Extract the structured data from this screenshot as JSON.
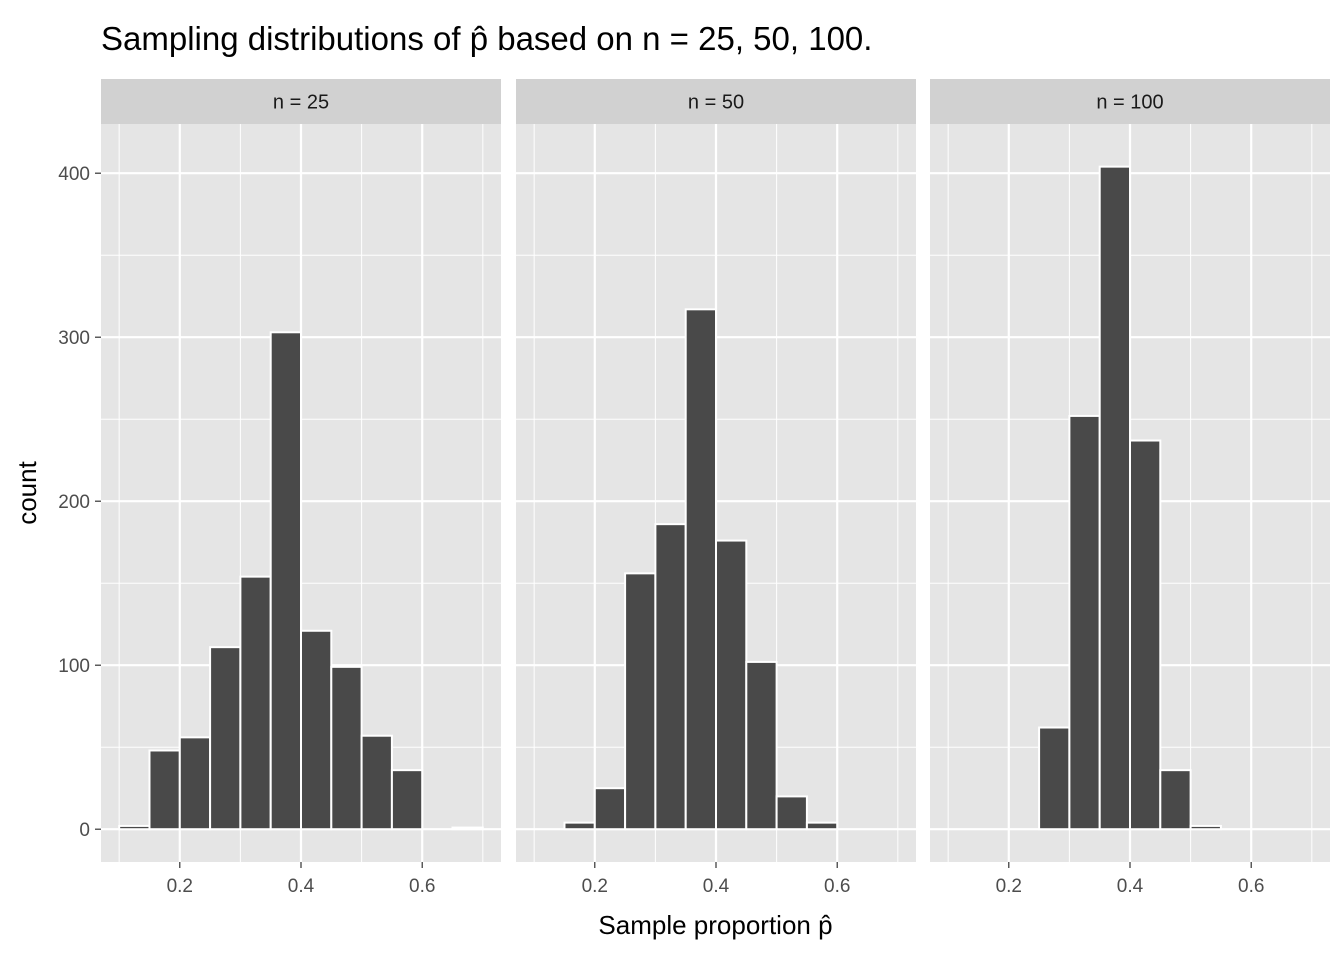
{
  "chart_data": {
    "type": "bar",
    "title": "Sampling distributions of p̂ based on n = 25, 50, 100.",
    "xlabel": "Sample proportion p̂",
    "ylabel": "count",
    "xlim": [
      0.07,
      0.73
    ],
    "ylim": [
      -20,
      430
    ],
    "xticks": [
      0.2,
      0.4,
      0.6
    ],
    "xtick_labels": [
      "0.2",
      "0.4",
      "0.6"
    ],
    "yticks": [
      0,
      100,
      200,
      300,
      400
    ],
    "ytick_labels": [
      "0",
      "100",
      "200",
      "300",
      "400"
    ],
    "grid": true,
    "bin_width": 0.05,
    "bin_centers": [
      0.125,
      0.175,
      0.225,
      0.275,
      0.325,
      0.375,
      0.425,
      0.475,
      0.525,
      0.575,
      0.625,
      0.675
    ],
    "panels": [
      {
        "label": "n = 25",
        "values": [
          2,
          48,
          56,
          111,
          154,
          303,
          121,
          99,
          57,
          36,
          0,
          1
        ]
      },
      {
        "label": "n = 50",
        "values": [
          0,
          4,
          25,
          156,
          186,
          317,
          176,
          102,
          20,
          4,
          0,
          0
        ]
      },
      {
        "label": "n = 100",
        "values": [
          0,
          0,
          0,
          62,
          252,
          404,
          237,
          36,
          2,
          0,
          0,
          0
        ]
      }
    ],
    "colors": {
      "bar_fill": "#494949",
      "bar_stroke": "#ffffff",
      "panel_background": "#e5e5e5",
      "strip_background": "#d1d1d1",
      "grid": "#ffffff"
    }
  }
}
